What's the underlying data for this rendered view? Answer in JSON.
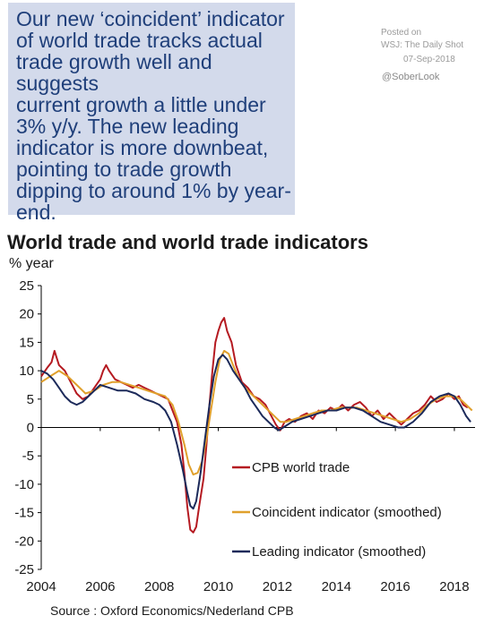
{
  "callout": {
    "lines": [
      "Our new ‘coincident’ indicator",
      "of world trade tracks actual",
      "trade growth well and suggests",
      "current growth a little under",
      "3% y/y. The new leading",
      "indicator is more downbeat,",
      "pointing to trade growth",
      "dipping to around 1% by year-",
      "end."
    ]
  },
  "posted": {
    "label": "Posted on",
    "source": "WSJ: The Daily Shot",
    "date": "07-Sep-2018"
  },
  "handle": "@SoberLook",
  "source": "Source : Oxford Economics/Nederland CPB",
  "colors": {
    "world_trade": "#b51a21",
    "coincident": "#e0a02c",
    "leading": "#1c2a5a",
    "callout_bg": "#d3daeb",
    "callout_text": "#1f3f7a"
  },
  "chart_data": {
    "type": "line",
    "title": "World trade and world trade indicators",
    "ylabel": "% year",
    "xlabel": "",
    "ylim": [
      -25,
      25
    ],
    "xlim": [
      2004,
      2018.7
    ],
    "x_ticks": [
      2004,
      2006,
      2008,
      2010,
      2012,
      2014,
      2016,
      2018
    ],
    "y_ticks": [
      25,
      20,
      15,
      10,
      5,
      0,
      -5,
      -10,
      -15,
      -20,
      -25
    ],
    "grid": false,
    "legend_position": "lower-center",
    "series": [
      {
        "name": "CPB world trade",
        "color": "#b51a21",
        "points": [
          [
            2004.0,
            9.0
          ],
          [
            2004.2,
            10.5
          ],
          [
            2004.35,
            11.5
          ],
          [
            2004.45,
            13.5
          ],
          [
            2004.6,
            11.0
          ],
          [
            2004.8,
            10.0
          ],
          [
            2005.0,
            8.0
          ],
          [
            2005.2,
            6.0
          ],
          [
            2005.4,
            5.0
          ],
          [
            2005.6,
            5.5
          ],
          [
            2005.8,
            7.0
          ],
          [
            2006.0,
            8.5
          ],
          [
            2006.1,
            10.0
          ],
          [
            2006.2,
            11.0
          ],
          [
            2006.3,
            10.0
          ],
          [
            2006.5,
            8.5
          ],
          [
            2006.7,
            8.0
          ],
          [
            2006.9,
            7.5
          ],
          [
            2007.1,
            7.0
          ],
          [
            2007.3,
            7.5
          ],
          [
            2007.5,
            7.0
          ],
          [
            2007.7,
            6.5
          ],
          [
            2007.9,
            6.0
          ],
          [
            2008.1,
            5.5
          ],
          [
            2008.3,
            5.0
          ],
          [
            2008.45,
            3.0
          ],
          [
            2008.6,
            1.0
          ],
          [
            2008.75,
            -3.0
          ],
          [
            2008.85,
            -8.0
          ],
          [
            2008.95,
            -14.0
          ],
          [
            2009.05,
            -18.0
          ],
          [
            2009.15,
            -18.5
          ],
          [
            2009.25,
            -17.5
          ],
          [
            2009.35,
            -14.0
          ],
          [
            2009.5,
            -9.0
          ],
          [
            2009.6,
            -3.0
          ],
          [
            2009.7,
            4.0
          ],
          [
            2009.8,
            10.0
          ],
          [
            2009.9,
            15.0
          ],
          [
            2010.0,
            17.0
          ],
          [
            2010.1,
            18.5
          ],
          [
            2010.2,
            19.3
          ],
          [
            2010.3,
            17.0
          ],
          [
            2010.45,
            15.0
          ],
          [
            2010.6,
            11.0
          ],
          [
            2010.8,
            8.0
          ],
          [
            2011.0,
            7.0
          ],
          [
            2011.2,
            5.5
          ],
          [
            2011.4,
            5.0
          ],
          [
            2011.6,
            4.0
          ],
          [
            2011.8,
            2.0
          ],
          [
            2011.95,
            0.5
          ],
          [
            2012.1,
            -0.5
          ],
          [
            2012.25,
            1.0
          ],
          [
            2012.4,
            1.5
          ],
          [
            2012.6,
            1.0
          ],
          [
            2012.8,
            2.0
          ],
          [
            2013.0,
            2.5
          ],
          [
            2013.2,
            1.5
          ],
          [
            2013.4,
            3.0
          ],
          [
            2013.6,
            2.5
          ],
          [
            2013.8,
            3.5
          ],
          [
            2014.0,
            3.0
          ],
          [
            2014.2,
            4.0
          ],
          [
            2014.4,
            3.0
          ],
          [
            2014.6,
            4.0
          ],
          [
            2014.8,
            4.5
          ],
          [
            2015.0,
            3.5
          ],
          [
            2015.2,
            2.0
          ],
          [
            2015.4,
            3.0
          ],
          [
            2015.6,
            1.5
          ],
          [
            2015.8,
            2.5
          ],
          [
            2016.0,
            1.5
          ],
          [
            2016.2,
            0.5
          ],
          [
            2016.4,
            1.5
          ],
          [
            2016.6,
            2.5
          ],
          [
            2016.8,
            3.0
          ],
          [
            2017.0,
            4.0
          ],
          [
            2017.2,
            5.5
          ],
          [
            2017.4,
            4.5
          ],
          [
            2017.6,
            5.0
          ],
          [
            2017.8,
            6.0
          ],
          [
            2018.0,
            5.0
          ],
          [
            2018.15,
            5.5
          ],
          [
            2018.3,
            4.0
          ],
          [
            2018.45,
            3.5
          ]
        ]
      },
      {
        "name": "Coincident indicator (smoothed)",
        "color": "#e0a02c",
        "points": [
          [
            2004.0,
            8.0
          ],
          [
            2004.3,
            9.0
          ],
          [
            2004.6,
            10.0
          ],
          [
            2004.9,
            9.0
          ],
          [
            2005.2,
            7.5
          ],
          [
            2005.5,
            6.0
          ],
          [
            2005.8,
            6.5
          ],
          [
            2006.1,
            7.5
          ],
          [
            2006.4,
            8.0
          ],
          [
            2006.7,
            8.0
          ],
          [
            2007.0,
            7.5
          ],
          [
            2007.3,
            7.0
          ],
          [
            2007.6,
            6.5
          ],
          [
            2007.9,
            6.0
          ],
          [
            2008.2,
            5.5
          ],
          [
            2008.45,
            4.0
          ],
          [
            2008.65,
            1.0
          ],
          [
            2008.85,
            -3.0
          ],
          [
            2009.0,
            -6.5
          ],
          [
            2009.15,
            -8.3
          ],
          [
            2009.3,
            -8.0
          ],
          [
            2009.45,
            -6.0
          ],
          [
            2009.6,
            -2.0
          ],
          [
            2009.75,
            3.0
          ],
          [
            2009.9,
            8.0
          ],
          [
            2010.05,
            12.0
          ],
          [
            2010.2,
            13.5
          ],
          [
            2010.35,
            13.0
          ],
          [
            2010.5,
            11.0
          ],
          [
            2010.7,
            8.5
          ],
          [
            2010.9,
            7.0
          ],
          [
            2011.1,
            6.0
          ],
          [
            2011.3,
            5.0
          ],
          [
            2011.5,
            4.0
          ],
          [
            2011.7,
            3.0
          ],
          [
            2011.9,
            2.0
          ],
          [
            2012.1,
            1.0
          ],
          [
            2012.3,
            1.0
          ],
          [
            2012.6,
            1.5
          ],
          [
            2012.9,
            2.0
          ],
          [
            2013.2,
            2.5
          ],
          [
            2013.5,
            3.0
          ],
          [
            2013.8,
            3.0
          ],
          [
            2014.1,
            3.5
          ],
          [
            2014.4,
            3.5
          ],
          [
            2014.7,
            3.5
          ],
          [
            2015.0,
            3.0
          ],
          [
            2015.3,
            2.5
          ],
          [
            2015.6,
            2.0
          ],
          [
            2015.9,
            1.5
          ],
          [
            2016.2,
            1.0
          ],
          [
            2016.5,
            1.5
          ],
          [
            2016.8,
            2.5
          ],
          [
            2017.1,
            4.0
          ],
          [
            2017.4,
            5.0
          ],
          [
            2017.7,
            5.5
          ],
          [
            2018.0,
            5.5
          ],
          [
            2018.2,
            5.0
          ],
          [
            2018.4,
            4.0
          ],
          [
            2018.6,
            3.0
          ]
        ]
      },
      {
        "name": "Leading indicator (smoothed)",
        "color": "#1c2a5a",
        "points": [
          [
            2004.0,
            10.0
          ],
          [
            2004.2,
            9.5
          ],
          [
            2004.4,
            8.5
          ],
          [
            2004.6,
            7.0
          ],
          [
            2004.8,
            5.5
          ],
          [
            2005.0,
            4.5
          ],
          [
            2005.2,
            4.0
          ],
          [
            2005.4,
            4.5
          ],
          [
            2005.6,
            5.5
          ],
          [
            2005.8,
            6.5
          ],
          [
            2006.0,
            7.5
          ],
          [
            2006.3,
            7.0
          ],
          [
            2006.6,
            6.5
          ],
          [
            2006.9,
            6.5
          ],
          [
            2007.2,
            6.0
          ],
          [
            2007.5,
            5.0
          ],
          [
            2007.8,
            4.5
          ],
          [
            2008.0,
            4.0
          ],
          [
            2008.2,
            3.0
          ],
          [
            2008.4,
            1.0
          ],
          [
            2008.6,
            -3.0
          ],
          [
            2008.8,
            -7.5
          ],
          [
            2008.95,
            -11.5
          ],
          [
            2009.05,
            -13.8
          ],
          [
            2009.15,
            -14.3
          ],
          [
            2009.25,
            -13.0
          ],
          [
            2009.4,
            -8.0
          ],
          [
            2009.55,
            -2.0
          ],
          [
            2009.7,
            4.0
          ],
          [
            2009.85,
            9.0
          ],
          [
            2010.0,
            12.0
          ],
          [
            2010.15,
            12.8
          ],
          [
            2010.3,
            12.0
          ],
          [
            2010.5,
            10.0
          ],
          [
            2010.7,
            8.5
          ],
          [
            2010.9,
            7.0
          ],
          [
            2011.1,
            5.0
          ],
          [
            2011.3,
            3.5
          ],
          [
            2011.5,
            2.0
          ],
          [
            2011.7,
            1.0
          ],
          [
            2011.9,
            0.0
          ],
          [
            2012.05,
            -0.5
          ],
          [
            2012.2,
            0.0
          ],
          [
            2012.5,
            1.0
          ],
          [
            2012.8,
            1.5
          ],
          [
            2013.1,
            2.0
          ],
          [
            2013.4,
            2.5
          ],
          [
            2013.7,
            3.0
          ],
          [
            2014.0,
            3.0
          ],
          [
            2014.3,
            3.5
          ],
          [
            2014.6,
            3.5
          ],
          [
            2014.9,
            3.0
          ],
          [
            2015.2,
            2.0
          ],
          [
            2015.5,
            1.0
          ],
          [
            2015.8,
            0.5
          ],
          [
            2016.1,
            0.0
          ],
          [
            2016.3,
            0.0
          ],
          [
            2016.6,
            1.0
          ],
          [
            2016.9,
            2.5
          ],
          [
            2017.2,
            4.5
          ],
          [
            2017.5,
            5.5
          ],
          [
            2017.8,
            6.0
          ],
          [
            2018.0,
            5.5
          ],
          [
            2018.2,
            4.0
          ],
          [
            2018.4,
            2.0
          ],
          [
            2018.55,
            1.0
          ]
        ]
      }
    ]
  }
}
